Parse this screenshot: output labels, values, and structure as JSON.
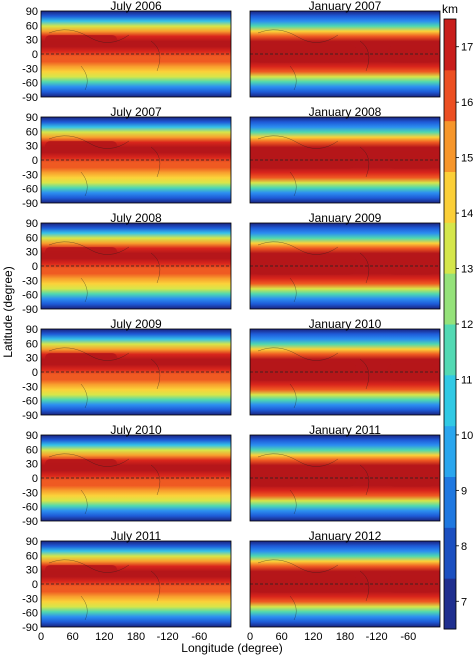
{
  "chart_data": {
    "type": "heatmap",
    "xlabel": "Longitude (degree)",
    "ylabel": "Latitude (degree)",
    "x_ticks": [
      "0",
      "60",
      "120",
      "180",
      "-120",
      "-60"
    ],
    "y_ticks": [
      "90",
      "60",
      "30",
      "0",
      "-30",
      "-60",
      "-90"
    ],
    "colorbar": {
      "unit": "km",
      "ticks": [
        "17",
        "16",
        "15",
        "14",
        "13",
        "12",
        "11",
        "10",
        "9",
        "8",
        "7"
      ],
      "range": [
        6.5,
        17.5
      ]
    },
    "panels": [
      {
        "title": "July 2006",
        "season": "july"
      },
      {
        "title": "January 2007",
        "season": "january"
      },
      {
        "title": "July 2007",
        "season": "july"
      },
      {
        "title": "January 2008",
        "season": "january"
      },
      {
        "title": "July 2008",
        "season": "july"
      },
      {
        "title": "January 2009",
        "season": "january"
      },
      {
        "title": "July 2009",
        "season": "july"
      },
      {
        "title": "January 2010",
        "season": "january"
      },
      {
        "title": "July 2010",
        "season": "july"
      },
      {
        "title": "January 2011",
        "season": "january"
      },
      {
        "title": "July 2011",
        "season": "july"
      },
      {
        "title": "January 2012",
        "season": "january"
      }
    ],
    "colormap": [
      "#1a237e",
      "#1e5bd8",
      "#2c8ef0",
      "#36c3e8",
      "#4fd8b0",
      "#8ee27a",
      "#d7e64a",
      "#fbd23a",
      "#f8a02e",
      "#ef5a22",
      "#d9261c",
      "#b5161a"
    ],
    "colorbar_colors": [
      "#1f2f8f",
      "#1b4fc0",
      "#1f78e0",
      "#2aa6ee",
      "#31c9e4",
      "#53d9b3",
      "#95e27a",
      "#d5e64b",
      "#fbcf38",
      "#f6962b",
      "#ec4f22",
      "#c81e1b"
    ]
  }
}
